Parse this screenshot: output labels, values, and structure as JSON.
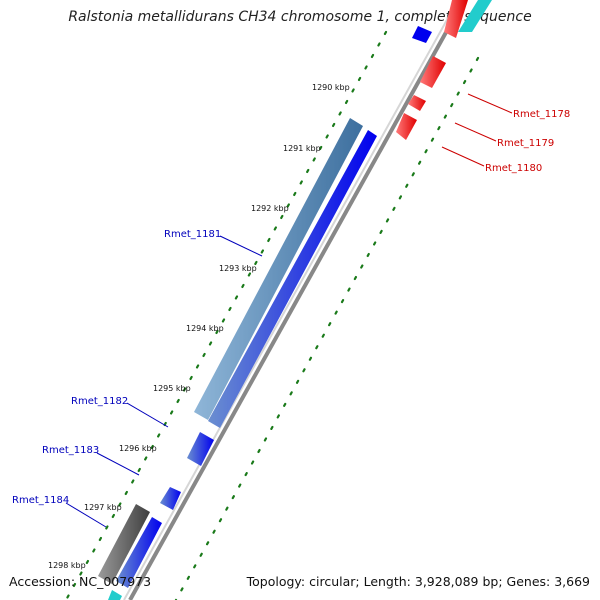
{
  "title": "Ralstonia metallidurans CH34 chromosome 1, complete sequence",
  "accession": "Accession: NC_007973",
  "summary": "Topology: circular; Length: 3,928,089 bp; Genes: 3,669",
  "colors": {
    "forward_gene": "#ff0000",
    "reverse_gene": "#0000ee",
    "forward_label": "#cc0000",
    "reverse_label": "#0000bb",
    "reverse_alt_gene": "#4a82b0",
    "gray_feature": "#555555",
    "cyan_feature": "#22cccc",
    "backbone": "#888888",
    "tick": "#1a7a1a"
  },
  "kbp_labels": [
    "1290 kbp",
    "1291 kbp",
    "1292 kbp",
    "1293 kbp",
    "1294 kbp",
    "1295 kbp",
    "1296 kbp",
    "1297 kbp",
    "1298 kbp"
  ],
  "gene_labels": [
    {
      "name": "Rmet_1178",
      "strand": "forward"
    },
    {
      "name": "Rmet_1179",
      "strand": "forward"
    },
    {
      "name": "Rmet_1180",
      "strand": "forward"
    },
    {
      "name": "Rmet_1181",
      "strand": "reverse"
    },
    {
      "name": "Rmet_1182",
      "strand": "reverse"
    },
    {
      "name": "Rmet_1183",
      "strand": "reverse"
    },
    {
      "name": "Rmet_1184",
      "strand": "reverse"
    }
  ]
}
